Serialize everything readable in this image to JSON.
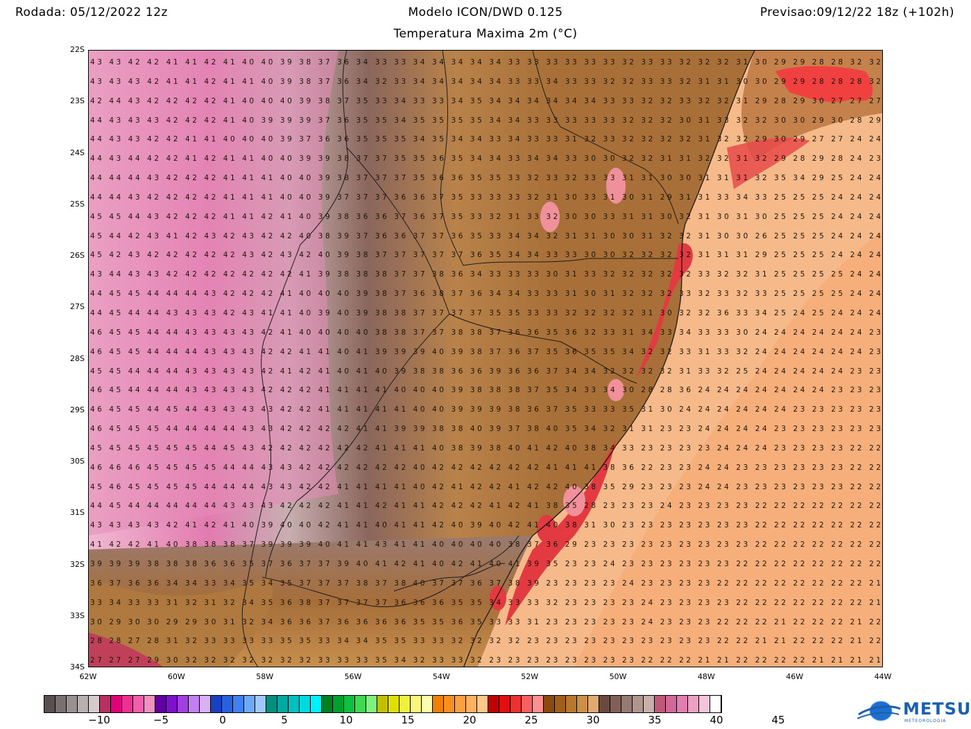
{
  "header": {
    "run": "Rodada: 05/12/2022 12z",
    "model": "Modelo ICON/DWD 0.125",
    "forecast": "Previsao:09/12/22 18z (+102h)",
    "parameter": "Temperatura Maxima 2m (°C)"
  },
  "lat_labels": [
    "22S",
    "23S",
    "24S",
    "25S",
    "26S",
    "27S",
    "28S",
    "29S",
    "30S",
    "31S",
    "32S",
    "33S",
    "34S"
  ],
  "lon_labels": [
    "62W",
    "60W",
    "58W",
    "56W",
    "54W",
    "52W",
    "50W",
    "48W",
    "46W",
    "44W"
  ],
  "values": [
    "43 43 42 42 41 41 42 41 40 40 39 38 37 36 34 33 33 34 34 34 34 34 33 33 33 33 33 33 32 33 33 32 32 32 31 30 29 29 28 28 32 32",
    "43 43 43 42 41 41 42 41 41 40 39 38 37 36 34 32 33 34 34 34 34 34 33 33 34 33 33 32 32 33 33 32 31 31 30 30 29 29 28 28 28 32",
    "42 44 43 42 42 42 42 41 40 40 40 39 38 37 35 33 34 33 33 34 35 34 34 34 34 34 34 33 33 32 32 33 32 32 31 29 28 29 30 27 27 27",
    "44 43 43 43 42 42 42 41 40 39 39 39 37 36 35 35 34 35 35 35 35 34 34 33 33 33 33 33 32 32 32 30 31 33 32 32 30 30 29 30 28 29",
    "44 43 43 42 42 41 41 40 40 40 39 37 36 36 35 35 35 34 35 34 34 33 34 33 33 31 32 33 32 32 32 32 31 32 32 29 30 29 27 27 24 24",
    "44 43 44 42 42 41 42 41 41 40 40 39 39 38 37 37 35 35 36 35 34 34 33 34 34 33 30 30 32 32 31 31 32 32 31 32 29 28 29 28 24 23",
    "44 44 44 43 42 42 42 41 41 41 40 40 39 38 37 37 37 35 36 36 35 35 33 32 33 32 33 33 31 31 30 30 31 31 31 32 35 34 29 25 24 24",
    "44 44 43 42 42 42 42 41 41 41 40 40 39 37 37 37 36 36 37 35 33 33 33 32 31 30 33 31 30 31 29 31 31 33 34 33 25 25 25 24 24 24",
    "45 45 44 43 42 42 42 41 41 42 41 40 39 38 36 36 37 36 37 35 33 32 31 33 32 30 30 33 31 31 30 32 31 30 31 30 25 25 25 24 24 24",
    "45 44 42 43 41 42 43 42 43 42 42 40 38 39 37 36 36 37 37 36 35 33 34 34 32 31 31 30 30 31 32 32 31 30 30 26 25 25 25 24 24 24",
    "45 42 43 42 42 42 42 42 43 42 43 42 40 39 38 37 37 37 37 37 36 35 34 34 33 33 30 30 32 32 32 32 31 31 31 29 25 25 25 24 24 24",
    "43 44 43 43 42 42 42 42 42 42 42 41 39 38 38 38 37 37 38 36 34 33 33 33 30 31 33 32 32 32 32 32 33 32 32 31 25 25 25 25 24 24",
    "44 45 45 44 44 44 43 42 42 42 41 40 40 40 39 38 37 36 38 37 36 34 34 33 33 31 30 31 32 32 32 33 32 33 32 33 25 25 25 25 24 24",
    "44 45 44 44 43 43 43 42 43 41 41 40 39 40 39 38 38 37 37 37 37 35 35 33 33 32 32 32 32 31 30 32 32 36 33 34 25 24 25 24 24 24",
    "46 45 45 44 44 43 43 43 43 42 41 40 40 40 40 38 38 37 37 38 38 37 36 36 35 36 32 33 31 34 33 34 33 33 30 24 24 24 24 24 24 23",
    "46 45 45 44 44 44 43 43 43 42 42 41 41 40 41 39 39 39 40 39 38 37 36 37 35 36 35 35 34 32 32 33 31 33 32 24 24 24 24 24 24 23",
    "45 45 44 44 44 43 43 43 43 42 41 42 41 40 41 40 39 38 38 36 36 39 36 36 37 34 34 32 32 32 32 31 33 32 25 24 24 24 24 24 23 23",
    "46 45 44 44 44 43 43 43 43 42 42 42 41 41 41 41 40 40 40 39 38 38 38 37 35 34 33 34 30 28 28 36 24 24 24 24 24 24 24 23 23 23",
    "46 45 45 44 45 44 43 43 43 43 42 42 41 41 41 41 41 40 40 39 39 39 38 36 37 35 33 33 35 31 30 24 24 24 24 24 24 23 23 23 23 23",
    "46 45 45 45 44 44 44 44 43 43 42 42 42 42 41 41 39 39 38 38 40 39 37 38 40 35 34 32 31 31 23 23 24 24 24 24 23 23 23 23 23 23",
    "45 45 45 45 45 45 44 45 43 42 42 42 42 42 42 41 41 41 40 38 39 38 40 41 42 40 38 34 33 23 23 23 23 24 24 24 23 23 23 23 22 22",
    "46 46 46 45 45 45 45 44 44 43 43 42 42 42 42 42 42 40 42 42 42 42 42 42 41 41 41 38 36 22 23 23 24 24 23 23 23 23 23 23 22 22",
    "45 46 45 45 45 45 44 44 44 43 43 42 42 41 41 41 41 40 42 41 42 42 41 42 42 40 38 35 29 23 23 23 24 24 23 23 23 23 23 23 22 22",
    "44 45 44 44 44 44 44 43 43 43 42 42 42 41 41 42 41 41 42 42 42 41 42 41 38 35 28 23 23 23 24 23 23 23 23 22 22 22 22 22 22 22",
    "43 43 43 43 42 41 42 41 40 39 40 40 42 41 41 40 41 41 42 40 39 40 42 41 40 38 31 30 23 23 23 23 23 23 23 22 22 22 22 22 22 22",
    "41 42 42 41 40 38 38 38 37 39 39 39 40 41 41 43 41 41 40 40 40 40 38 37 36 29 23 23 23 23 23 23 23 23 23 22 22 22 22 22 22 22",
    "39 39 39 38 38 38 36 36 35 37 36 37 37 39 40 41 42 41 40 42 41 40 41 39 35 23 23 24 23 23 23 23 23 23 22 22 22 22 22 22 22 22",
    "36 37 36 36 34 34 33 34 35 34 35 37 37 37 38 37 38 40 37 37 36 37 38 39 23 23 23 23 24 23 23 23 23 22 22 22 22 22 22 22 22 21",
    "33 34 33 33 31 32 31 32 34 35 36 38 37 37 37 37 36 36 36 35 35 34 33 33 32 23 23 23 23 24 23 23 23 23 22 22 22 22 22 22 22 21",
    "30 29 30 30 29 29 30 31 32 34 36 36 37 36 36 36 36 35 35 36 35 33 33 31 23 23 23 23 23 24 23 23 23 22 22 22 21 22 22 22 21 22",
    "28 28 27 28 31 32 33 33 33 33 35 35 33 34 34 35 35 33 33 32 32 32 32 23 23 23 23 23 23 23 23 23 23 22 22 21 21 22 22 22 21 22",
    "27 27 27 29 30 32 32 32 32 32 32 32 33 33 33 35 34 32 33 33 32 23 23 23 23 23 23 23 23 22 22 22 21 21 22 22 22 22 21 21 21 21"
  ],
  "colorbar": {
    "colors": [
      "#5a5050",
      "#7a7070",
      "#9a9090",
      "#b8b0b0",
      "#d4cccc",
      "#b83060",
      "#e0007a",
      "#f03090",
      "#f060a8",
      "#f090c0",
      "#6000a0",
      "#8010d0",
      "#a040e0",
      "#c080f0",
      "#d8b0f8",
      "#1a40c0",
      "#2860e0",
      "#4080f0",
      "#70a8f8",
      "#a0c8ff",
      "#009080",
      "#00a8a0",
      "#00c0c0",
      "#00d8e0",
      "#00f0ff",
      "#008020",
      "#00a030",
      "#10c040",
      "#40d850",
      "#80f080",
      "#c0c000",
      "#e0e000",
      "#f0f040",
      "#f8f880",
      "#fffcb0",
      "#f08000",
      "#f89020",
      "#fca040",
      "#ffb060",
      "#ffc888",
      "#c00000",
      "#e01010",
      "#f03030",
      "#f86060",
      "#ff9090",
      "#8a4a10",
      "#a0601c",
      "#b8782c",
      "#cc9048",
      "#e0aa70",
      "#6a4a40",
      "#806058",
      "#987872",
      "#b0948e",
      "#c8b0aa",
      "#c05878",
      "#d06898",
      "#e080b0",
      "#eca0c4",
      "#f4c4da",
      "#ffffff"
    ],
    "labels": [
      "−10",
      "−5",
      "0",
      "5",
      "10",
      "15",
      "20",
      "25",
      "30",
      "35",
      "40",
      "45"
    ]
  },
  "logo": {
    "name": "METSUL",
    "sub": "METEOROLOGIA"
  }
}
